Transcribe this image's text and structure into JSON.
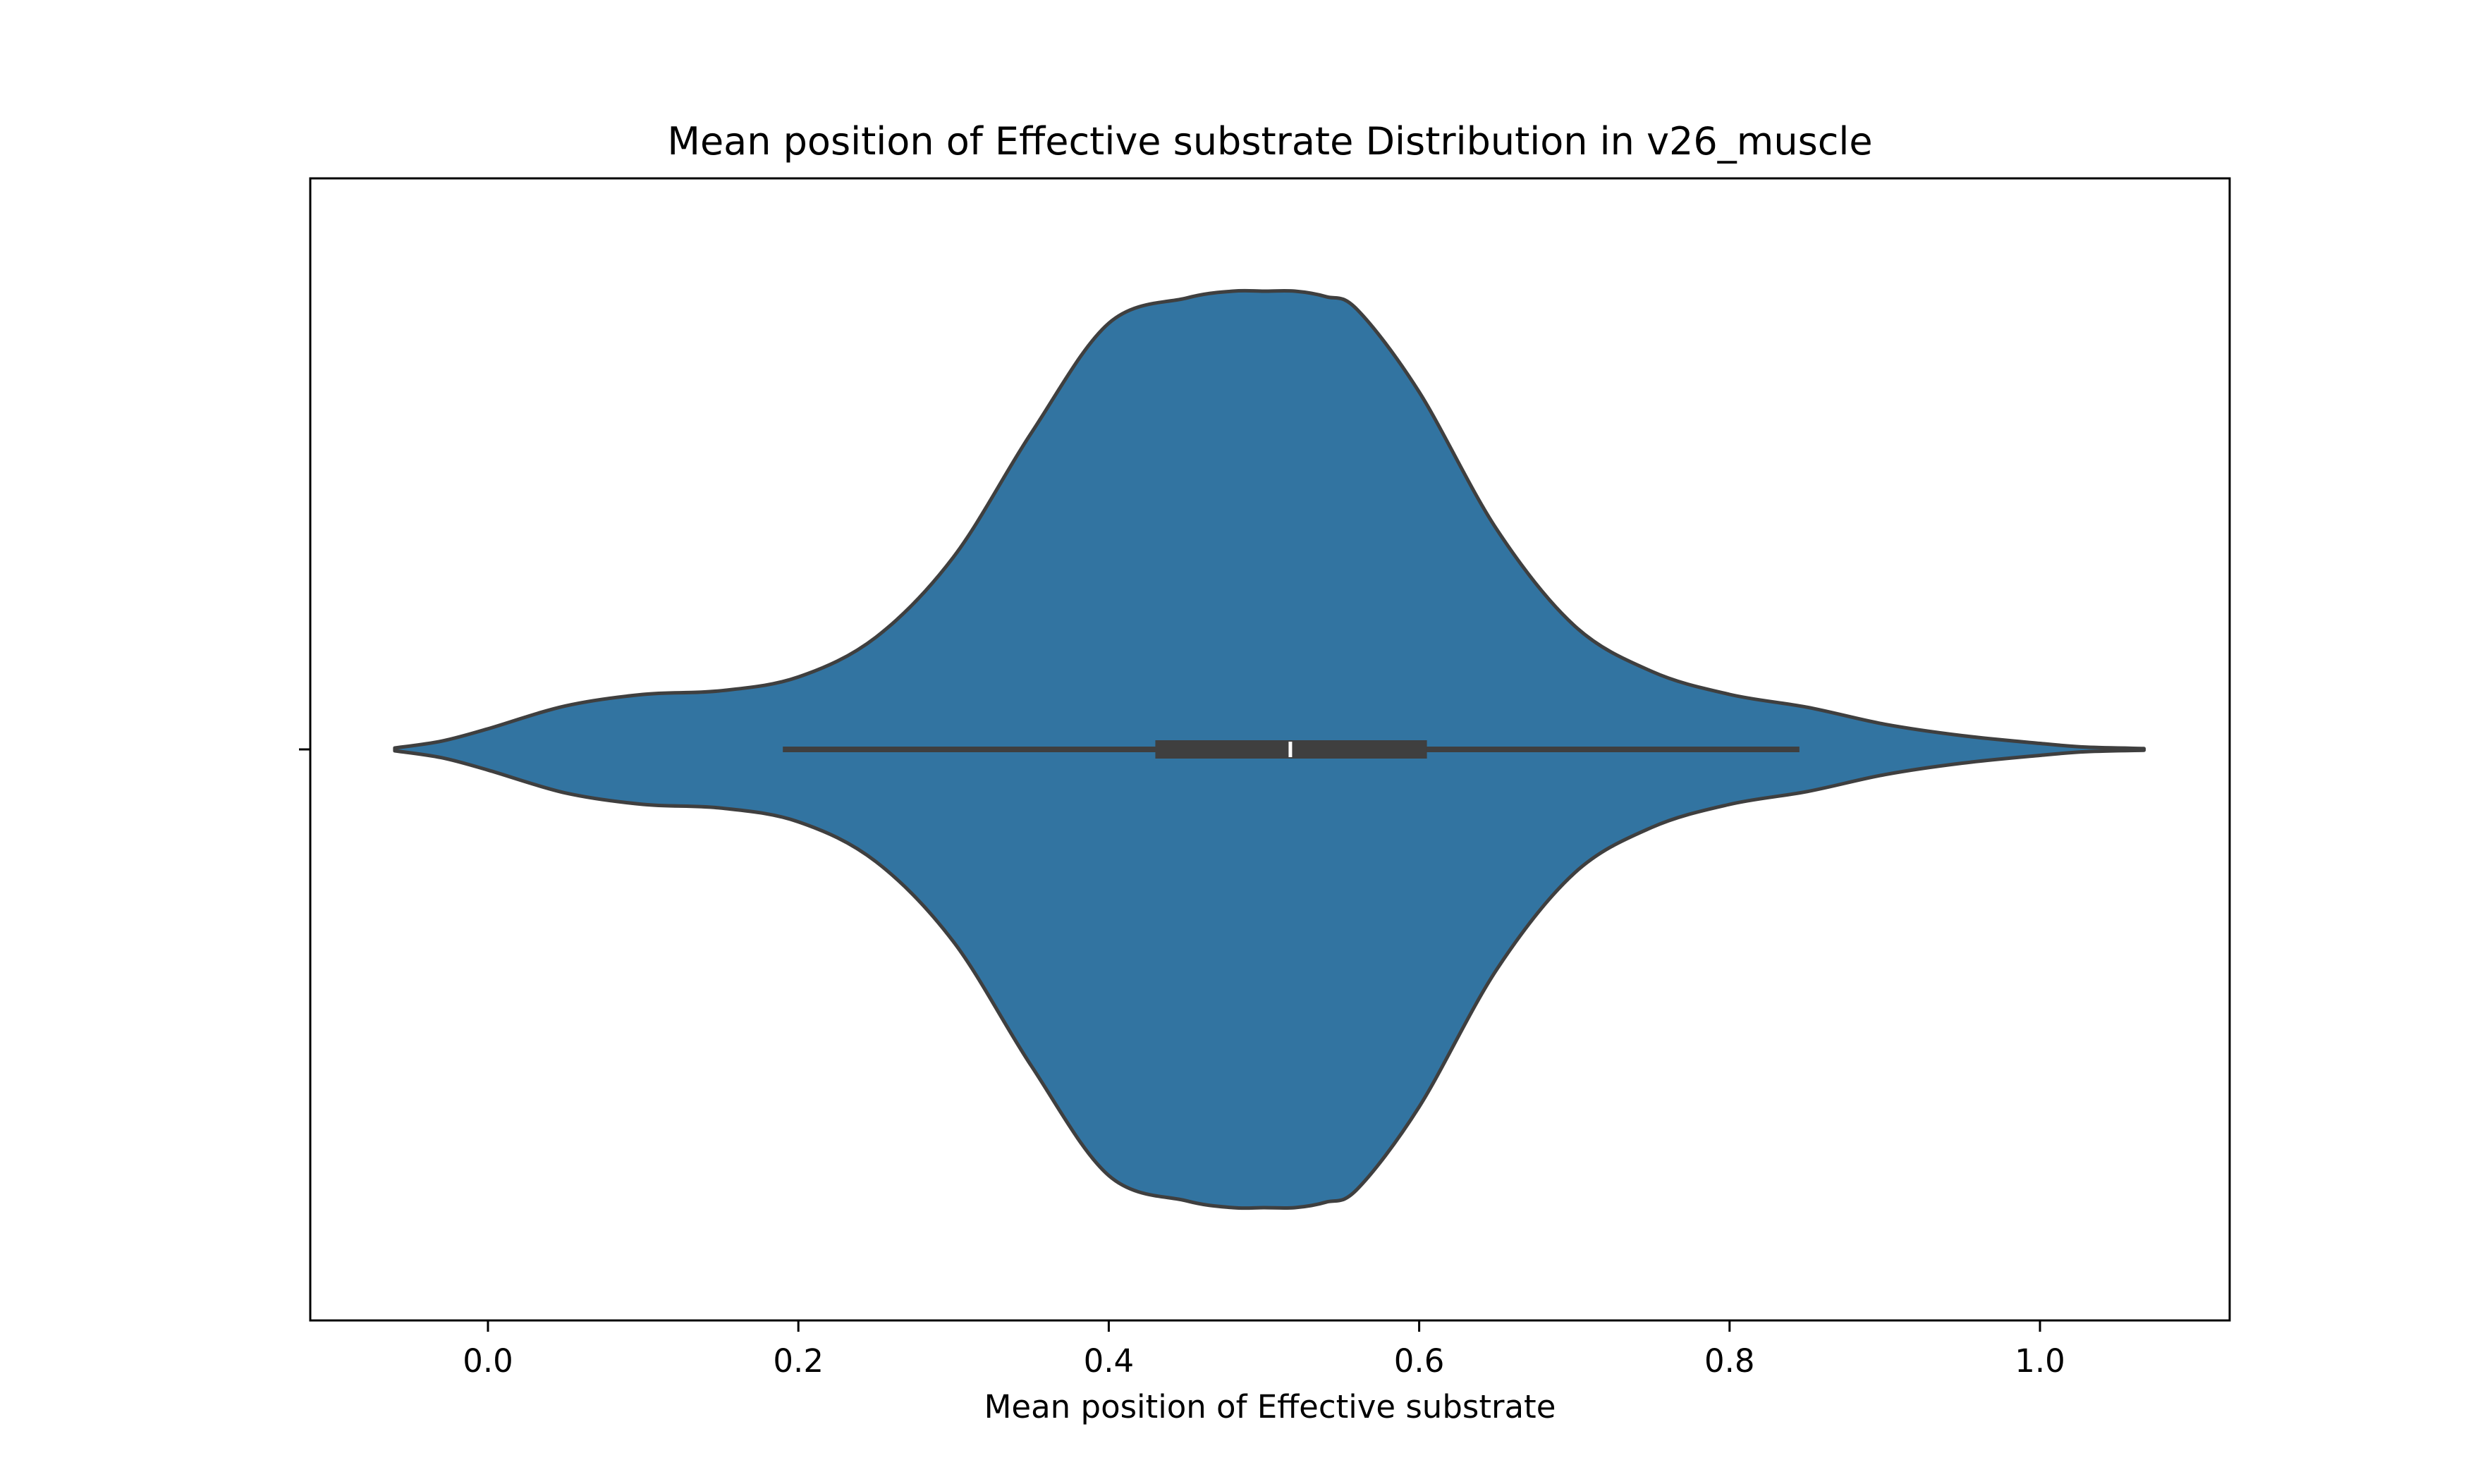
{
  "chart_data": {
    "type": "violin",
    "title": "Mean position of Effective substrate Distribution in v26_muscle",
    "xlabel": "Mean position of Effective substrate",
    "ylabel": "",
    "xlim": [
      -0.115,
      1.125
    ],
    "xticks": [
      {
        "value": 0.0,
        "label": "0.0"
      },
      {
        "value": 0.2,
        "label": "0.2"
      },
      {
        "value": 0.4,
        "label": "0.4"
      },
      {
        "value": 0.6,
        "label": "0.6"
      },
      {
        "value": 0.8,
        "label": "0.8"
      },
      {
        "value": 1.0,
        "label": "1.0"
      }
    ],
    "grid": false,
    "fill_color": "#3274a1",
    "edge_color": "#3f3f3f",
    "box_color": "#3f3f3f",
    "median_color": "#ffffff",
    "box": {
      "min": 0.19,
      "q1": 0.43,
      "median": 0.517,
      "q3": 0.605,
      "max": 0.845
    },
    "density": {
      "x": [
        -0.06,
        -0.03,
        0.0,
        0.05,
        0.1,
        0.15,
        0.2,
        0.25,
        0.3,
        0.35,
        0.4,
        0.45,
        0.48,
        0.5,
        0.52,
        0.54,
        0.56,
        0.6,
        0.65,
        0.7,
        0.75,
        0.8,
        0.85,
        0.9,
        0.95,
        1.0,
        1.03,
        1.067
      ],
      "y": [
        0.003,
        0.018,
        0.045,
        0.095,
        0.12,
        0.128,
        0.158,
        0.245,
        0.42,
        0.69,
        0.93,
        0.985,
        1.0,
        1.0,
        1.0,
        0.988,
        0.96,
        0.78,
        0.48,
        0.27,
        0.17,
        0.12,
        0.092,
        0.055,
        0.03,
        0.013,
        0.005,
        0.002
      ]
    }
  }
}
